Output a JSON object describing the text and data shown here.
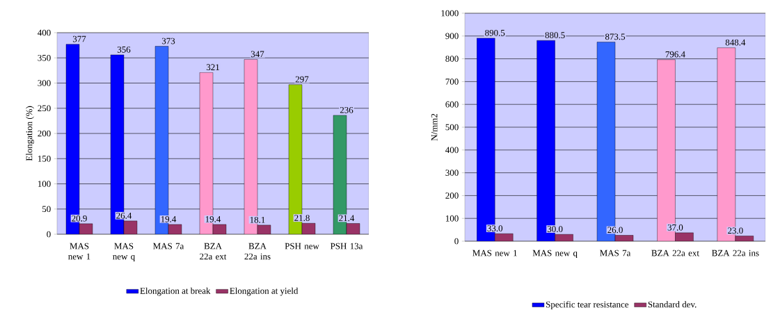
{
  "chart_data": [
    {
      "type": "bar",
      "ylabel": "Elongation (%)",
      "categories": [
        "MAS new 1",
        "MAS new q",
        "MAS 7a",
        "BZA 22a ext",
        "BZA 22a ins",
        "PSH new",
        "PSH 13a"
      ],
      "series": [
        {
          "name": "Elongation at break",
          "color": "#0000ff",
          "colors": [
            "#0000ff",
            "#0000ff",
            "#3366ff",
            "#ff99cc",
            "#ff99cc",
            "#99cc00",
            "#339966"
          ],
          "values": [
            377,
            356,
            373,
            321,
            347,
            297,
            236
          ]
        },
        {
          "name": "Elongation at yield",
          "color": "#993366",
          "values": [
            20.9,
            26.4,
            19.4,
            19.4,
            18.1,
            21.8,
            21.4
          ]
        }
      ],
      "ylim": [
        0,
        400
      ],
      "yticks": [
        0,
        50,
        100,
        150,
        200,
        250,
        300,
        350,
        400
      ],
      "grid": "y",
      "legend": "bottom",
      "data_labels": true
    },
    {
      "type": "bar",
      "ylabel": "N/mm2",
      "categories": [
        "MAS new 1",
        "MAS new q",
        "MAS 7a",
        "BZA 22a ext",
        "BZA 22a ins"
      ],
      "series": [
        {
          "name": "Specific tear resistance",
          "color": "#0000ff",
          "colors": [
            "#0000ff",
            "#0000ff",
            "#3366ff",
            "#ff99cc",
            "#ff99cc"
          ],
          "values": [
            890.5,
            880.5,
            873.5,
            796.4,
            848.4
          ]
        },
        {
          "name": "Standard dev.",
          "color": "#993366",
          "values": [
            33.0,
            30.0,
            26.0,
            37.0,
            23.0
          ],
          "value_labels": [
            "33.0",
            "30.0",
            "26.0",
            "37.0",
            "23.0"
          ]
        }
      ],
      "ylim": [
        0,
        1000
      ],
      "yticks": [
        0,
        100,
        200,
        300,
        400,
        500,
        600,
        700,
        800,
        900,
        1000
      ],
      "grid": "y",
      "legend": "bottom",
      "data_labels": true
    }
  ]
}
